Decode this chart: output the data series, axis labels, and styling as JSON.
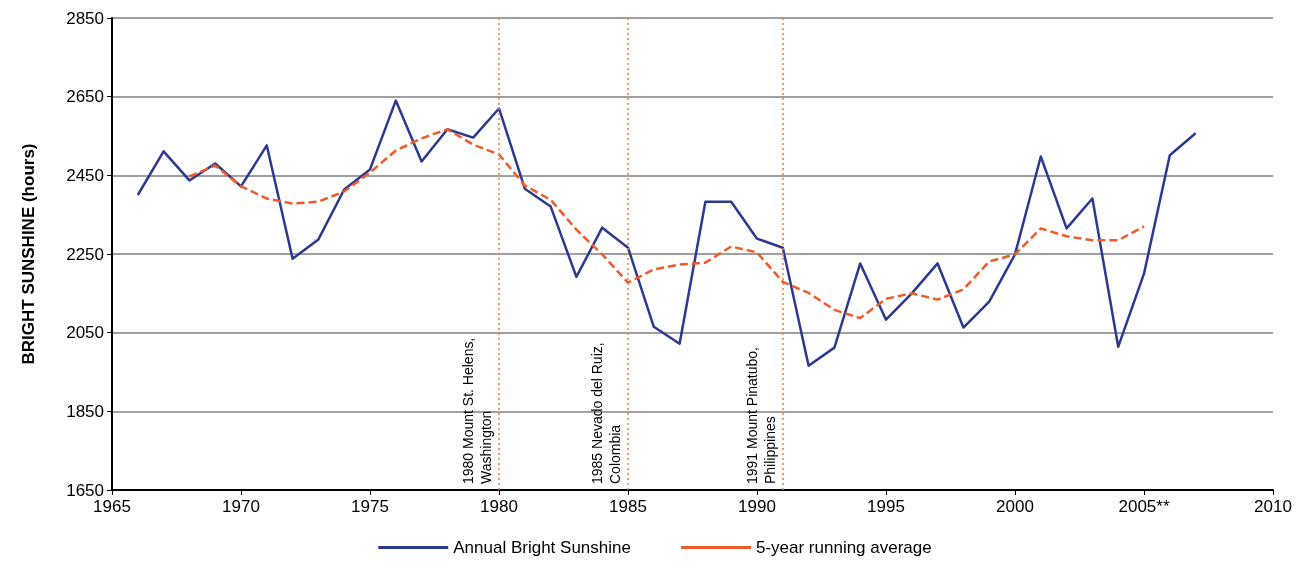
{
  "chart_data": {
    "type": "line",
    "ylabel": "BRIGHT SUNSHINE (hours)",
    "x": [
      1966,
      1967,
      1968,
      1969,
      1970,
      1971,
      1972,
      1973,
      1974,
      1975,
      1976,
      1977,
      1978,
      1979,
      1980,
      1981,
      1982,
      1983,
      1984,
      1985,
      1986,
      1987,
      1988,
      1989,
      1990,
      1991,
      1992,
      1993,
      1994,
      1995,
      1996,
      1997,
      1998,
      1999,
      2000,
      2001,
      2002,
      2003,
      2004,
      2005,
      2006,
      2007
    ],
    "series": [
      {
        "name": "Annual Bright Sunshine",
        "color": "#2b3990",
        "line_style": "solid",
        "values": [
          2400,
          2511,
          2437,
          2480,
          2422,
          2526,
          2238,
          2287,
          2414,
          2465,
          2640,
          2485,
          2567,
          2546,
          2620,
          2416,
          2371,
          2192,
          2317,
          2266,
          2065,
          2022,
          2383,
          2383,
          2289,
          2266,
          1966,
          2012,
          2226,
          2083,
          2150,
          2226,
          2063,
          2129,
          2249,
          2498,
          2315,
          2391,
          2014,
          2200,
          2501,
          2557
        ]
      },
      {
        "name": "5-year running average",
        "color": "#f15a29",
        "line_style": "dashed",
        "values": [
          null,
          null,
          2447,
          2475,
          2422,
          2391,
          2378,
          2383,
          2409,
          2457,
          2513,
          2544,
          2567,
          2528,
          2503,
          2424,
          2388,
          2312,
          2249,
          2177,
          2211,
          2223,
          2228,
          2269,
          2254,
          2179,
          2151,
          2108,
          2087,
          2136,
          2150,
          2134,
          2160,
          2231,
          2249,
          2315,
          2295,
          2285,
          2285,
          2320,
          null,
          null
        ]
      }
    ],
    "xlim": [
      1965,
      2010
    ],
    "xticks": [
      1965,
      1970,
      1975,
      1980,
      1985,
      1990,
      1995,
      2000,
      {
        "value": 2005,
        "label": "2005**"
      },
      2010
    ],
    "ylim": [
      1650,
      2850
    ],
    "yticks": [
      1650,
      1850,
      2050,
      2250,
      2450,
      2650,
      2850
    ],
    "ref_lines": [
      {
        "axis": "x",
        "value": 1980,
        "label": "1980 Mount St. Helens, Washington",
        "color": "#f47b3a",
        "line_style": "dotted"
      },
      {
        "axis": "x",
        "value": 1985,
        "label": "1985 Nevado del Ruiz, Colombia",
        "color": "#f47b3a",
        "line_style": "dotted"
      },
      {
        "axis": "x",
        "value": 1991,
        "label": "1991 Mount Pinatubo, Philippines",
        "color": "#f47b3a",
        "line_style": "dotted"
      }
    ],
    "grid": "y",
    "legend": "bottom",
    "marker": "none"
  }
}
